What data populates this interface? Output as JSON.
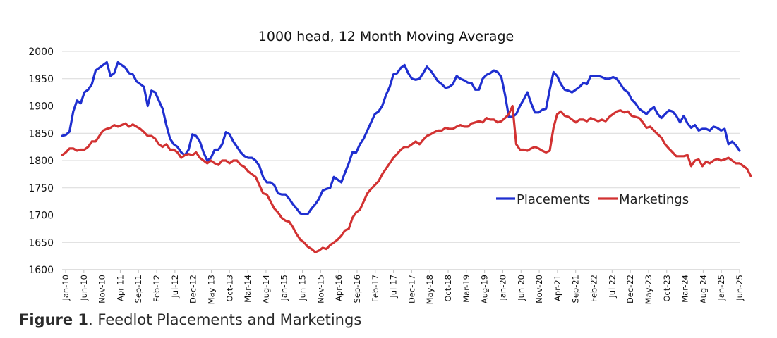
{
  "caption": {
    "label": "Figure 1",
    "text": ". Feedlot Placements and Marketings"
  },
  "chart_data": {
    "type": "line",
    "title": "1000 head, 12 Month Moving Average",
    "xlabel": "",
    "ylabel": "",
    "ylim": [
      1600,
      2000
    ],
    "yticks": [
      1600,
      1650,
      1700,
      1750,
      1800,
      1850,
      1900,
      1950,
      2000
    ],
    "grid": true,
    "legend_position": "center-right",
    "x_start": "Jan-10",
    "x_end": "Jun-25",
    "tick_labels": [
      "Jan-10",
      "Jun-10",
      "Nov-10",
      "Apr-11",
      "Sep-11",
      "Feb-12",
      "Jul-12",
      "Dec-12",
      "May-13",
      "Oct-13",
      "Mar-14",
      "Aug-14",
      "Jan-15",
      "Jun-15",
      "Nov-15",
      "Apr-16",
      "Sep-16",
      "Feb-17",
      "Jul-17",
      "Dec-17",
      "May-18",
      "Oct-18",
      "Mar-19",
      "Aug-19",
      "Jan-20",
      "Jun-20",
      "Nov-20",
      "Apr-21",
      "Sep-21",
      "Feb-22",
      "Jul-22",
      "Dec-22",
      "May-23",
      "Oct-23",
      "Mar-24",
      "Aug-24",
      "Jan-25",
      "Jun-25"
    ],
    "series": [
      {
        "name": "Placements",
        "color": "#1f2fd0",
        "values": [
          1845,
          1847,
          1853,
          1890,
          1910,
          1905,
          1925,
          1930,
          1940,
          1965,
          1970,
          1975,
          1980,
          1955,
          1960,
          1980,
          1975,
          1970,
          1960,
          1958,
          1945,
          1940,
          1935,
          1900,
          1928,
          1925,
          1910,
          1895,
          1865,
          1840,
          1830,
          1825,
          1815,
          1810,
          1820,
          1848,
          1845,
          1835,
          1815,
          1800,
          1805,
          1820,
          1820,
          1830,
          1852,
          1848,
          1835,
          1825,
          1815,
          1808,
          1805,
          1805,
          1800,
          1790,
          1770,
          1760,
          1760,
          1755,
          1740,
          1738,
          1738,
          1730,
          1720,
          1712,
          1703,
          1702,
          1702,
          1712,
          1720,
          1730,
          1745,
          1748,
          1750,
          1770,
          1765,
          1760,
          1778,
          1795,
          1815,
          1815,
          1830,
          1840,
          1855,
          1870,
          1885,
          1890,
          1900,
          1920,
          1935,
          1958,
          1960,
          1970,
          1975,
          1960,
          1950,
          1948,
          1950,
          1960,
          1972,
          1965,
          1955,
          1945,
          1940,
          1933,
          1935,
          1940,
          1955,
          1950,
          1947,
          1943,
          1942,
          1930,
          1930,
          1950,
          1957,
          1960,
          1965,
          1962,
          1953,
          1920,
          1880,
          1880,
          1885,
          1900,
          1912,
          1925,
          1905,
          1888,
          1888,
          1893,
          1895,
          1930,
          1962,
          1955,
          1940,
          1930,
          1928,
          1925,
          1930,
          1935,
          1942,
          1940,
          1955,
          1955,
          1955,
          1953,
          1950,
          1950,
          1953,
          1950,
          1940,
          1930,
          1925,
          1912,
          1905,
          1895,
          1890,
          1885,
          1893,
          1898,
          1885,
          1878,
          1885,
          1892,
          1890,
          1882,
          1870,
          1882,
          1868,
          1860,
          1865,
          1855,
          1858,
          1858,
          1855,
          1862,
          1860,
          1855,
          1858,
          1830,
          1835,
          1828,
          1818
        ]
      },
      {
        "name": "Marketings",
        "color": "#d23232",
        "values": [
          1810,
          1815,
          1822,
          1822,
          1818,
          1820,
          1820,
          1825,
          1835,
          1835,
          1845,
          1855,
          1858,
          1860,
          1865,
          1862,
          1865,
          1868,
          1862,
          1866,
          1862,
          1858,
          1852,
          1845,
          1845,
          1840,
          1830,
          1825,
          1830,
          1820,
          1820,
          1815,
          1805,
          1810,
          1812,
          1810,
          1815,
          1805,
          1800,
          1795,
          1800,
          1795,
          1792,
          1800,
          1800,
          1795,
          1800,
          1800,
          1792,
          1788,
          1780,
          1775,
          1770,
          1755,
          1740,
          1738,
          1725,
          1712,
          1705,
          1695,
          1690,
          1688,
          1678,
          1665,
          1655,
          1650,
          1642,
          1638,
          1632,
          1635,
          1640,
          1638,
          1645,
          1650,
          1655,
          1662,
          1672,
          1675,
          1695,
          1705,
          1710,
          1725,
          1740,
          1748,
          1755,
          1762,
          1775,
          1785,
          1795,
          1805,
          1812,
          1820,
          1825,
          1825,
          1830,
          1835,
          1830,
          1838,
          1845,
          1848,
          1852,
          1855,
          1855,
          1860,
          1858,
          1858,
          1862,
          1865,
          1862,
          1862,
          1868,
          1870,
          1872,
          1870,
          1878,
          1875,
          1875,
          1870,
          1872,
          1878,
          1885,
          1900,
          1830,
          1820,
          1820,
          1818,
          1822,
          1825,
          1822,
          1818,
          1815,
          1818,
          1860,
          1885,
          1890,
          1882,
          1880,
          1875,
          1870,
          1875,
          1875,
          1872,
          1878,
          1875,
          1872,
          1875,
          1872,
          1880,
          1885,
          1890,
          1892,
          1888,
          1890,
          1882,
          1880,
          1878,
          1870,
          1860,
          1862,
          1855,
          1848,
          1842,
          1830,
          1822,
          1815,
          1808,
          1808,
          1808,
          1810,
          1790,
          1800,
          1802,
          1790,
          1798,
          1795,
          1800,
          1803,
          1800,
          1802,
          1805,
          1800,
          1795,
          1795,
          1790,
          1785,
          1772
        ]
      }
    ]
  }
}
